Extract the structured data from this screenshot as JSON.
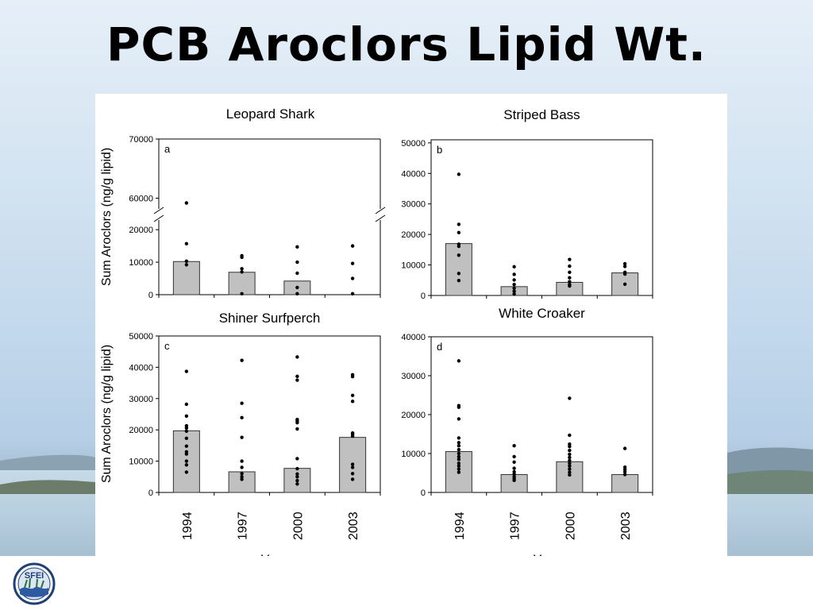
{
  "slide": {
    "title": "PCB Aroclors Lipid Wt.",
    "logo_text": "SFEI"
  },
  "chart_data": [
    {
      "id": "a",
      "type": "bar",
      "title": "Leopard Shark",
      "panel_label": "a",
      "xlabel": "",
      "ylabel": "Sum Aroclors (ng/g lipid)",
      "categories": [
        "1994",
        "1997",
        "2000",
        "2003"
      ],
      "values": [
        10200,
        6900,
        4200,
        null
      ],
      "points": [
        [
          59200,
          15700,
          10300,
          9200
        ],
        [
          12000,
          11500,
          8000,
          7000,
          300
        ],
        [
          14700,
          10000,
          6600,
          2200,
          300
        ],
        [
          15000,
          9600,
          5000,
          300
        ]
      ],
      "axis_break": true,
      "ylim_lower": [
        0,
        22000
      ],
      "ylim_upper": [
        59000,
        70000
      ],
      "yticks_lower": [
        0,
        10000,
        20000
      ],
      "yticks_upper": [
        60000,
        70000
      ],
      "show_xticklabels": false
    },
    {
      "id": "b",
      "type": "bar",
      "title": "Striped Bass",
      "panel_label": "b",
      "xlabel": "",
      "ylabel": "",
      "categories": [
        "1994",
        "1997",
        "2000",
        "2003"
      ],
      "values": [
        17000,
        2900,
        4300,
        7400
      ],
      "points": [
        [
          39700,
          23300,
          20600,
          16800,
          16100,
          13200,
          7200,
          4900
        ],
        [
          9400,
          6900,
          5100,
          3600,
          2400,
          1400,
          500
        ],
        [
          11800,
          9600,
          7600,
          5800,
          4500,
          3600,
          3100
        ],
        [
          10400,
          9500,
          7600,
          7000,
          3700
        ]
      ],
      "ylim": [
        0,
        51000
      ],
      "yticks": [
        0,
        10000,
        20000,
        30000,
        40000,
        50000
      ],
      "show_xticklabels": false
    },
    {
      "id": "c",
      "type": "bar",
      "title": "Shiner Surfperch",
      "panel_label": "c",
      "xlabel": "Year",
      "ylabel": "Sum Aroclors (ng/g lipid)",
      "categories": [
        "1994",
        "1997",
        "2000",
        "2003"
      ],
      "values": [
        19700,
        6600,
        7700,
        17600
      ],
      "points": [
        [
          38700,
          28200,
          24400,
          21300,
          20600,
          19600,
          17300,
          14800,
          13000,
          12300,
          10000,
          8800,
          6500
        ],
        [
          42200,
          28500,
          23900,
          17600,
          10000,
          8000,
          6000,
          5000,
          4200
        ],
        [
          43300,
          37100,
          35900,
          23300,
          22800,
          22300,
          20300,
          10800,
          7600,
          5900,
          5000,
          3800,
          2700
        ],
        [
          37600,
          37000,
          31000,
          29100,
          19000,
          18600,
          18000,
          9000,
          8000,
          6000,
          4200
        ]
      ],
      "ylim": [
        0,
        50000
      ],
      "yticks": [
        0,
        10000,
        20000,
        30000,
        40000,
        50000
      ],
      "show_xticklabels": true
    },
    {
      "id": "d",
      "type": "bar",
      "title": "White Croaker",
      "panel_label": "d",
      "xlabel": "Year",
      "ylabel": "",
      "categories": [
        "1994",
        "1997",
        "2000",
        "2003"
      ],
      "values": [
        10500,
        4600,
        7900,
        4600
      ],
      "points": [
        [
          33800,
          22300,
          21900,
          18900,
          14000,
          12800,
          12000,
          11000,
          10000,
          9200,
          8500,
          7500,
          6800,
          6000,
          5200
        ],
        [
          12000,
          9200,
          7800,
          6200,
          5300,
          4700,
          4100,
          3600,
          3100
        ],
        [
          24200,
          14700,
          12400,
          11800,
          10800,
          9800,
          9000,
          8200,
          7500,
          6800,
          6000,
          5200,
          4500
        ],
        [
          11300,
          6500,
          5900,
          5300,
          4600
        ]
      ],
      "ylim": [
        0,
        40000
      ],
      "yticks": [
        0,
        10000,
        20000,
        30000,
        40000
      ],
      "show_xticklabels": true
    }
  ],
  "colors": {
    "bar_fill": "#c0c0c0",
    "bar_stroke": "#333333",
    "point": "#000000",
    "title": "#000000"
  }
}
